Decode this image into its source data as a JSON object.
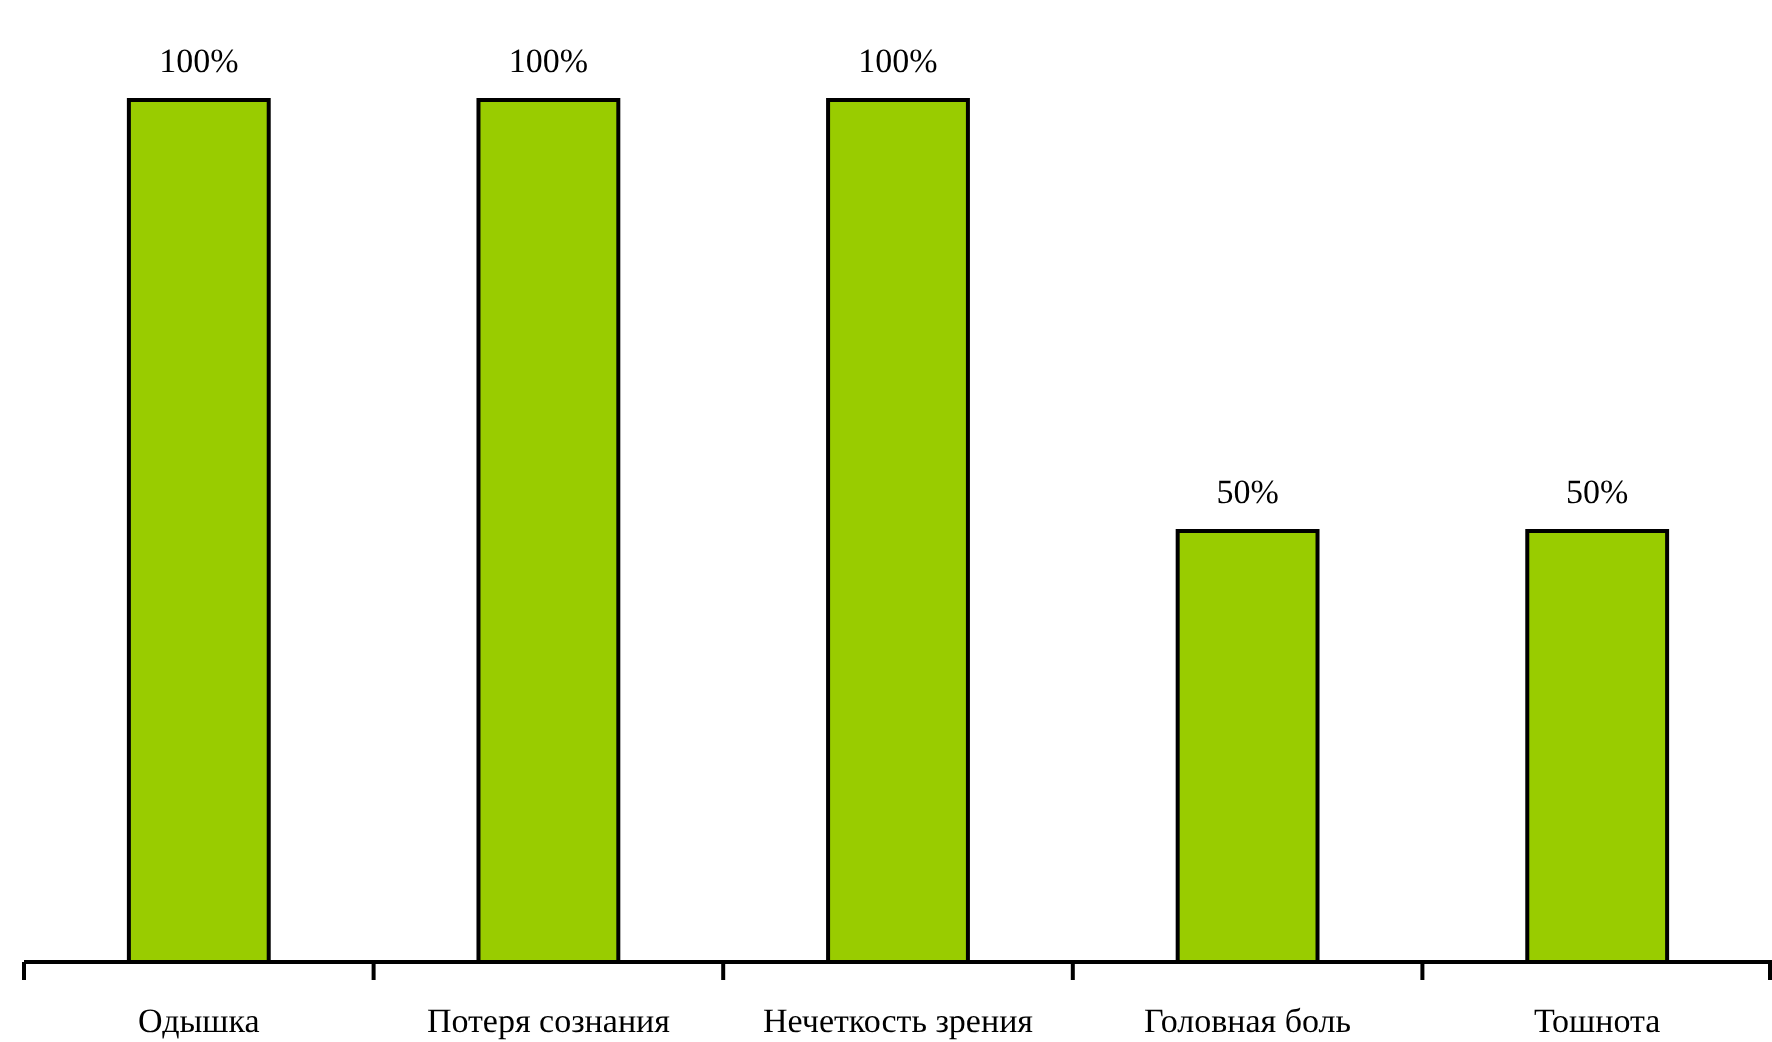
{
  "chart_data": {
    "type": "bar",
    "categories": [
      "Одышка",
      "Потеря сознания",
      "Нечеткость зрения",
      "Головная боль",
      "Тошнота"
    ],
    "values": [
      100,
      100,
      100,
      50,
      50
    ],
    "value_labels": [
      "100%",
      "100%",
      "100%",
      "50%",
      "50%"
    ],
    "color": "#99cc00"
  }
}
